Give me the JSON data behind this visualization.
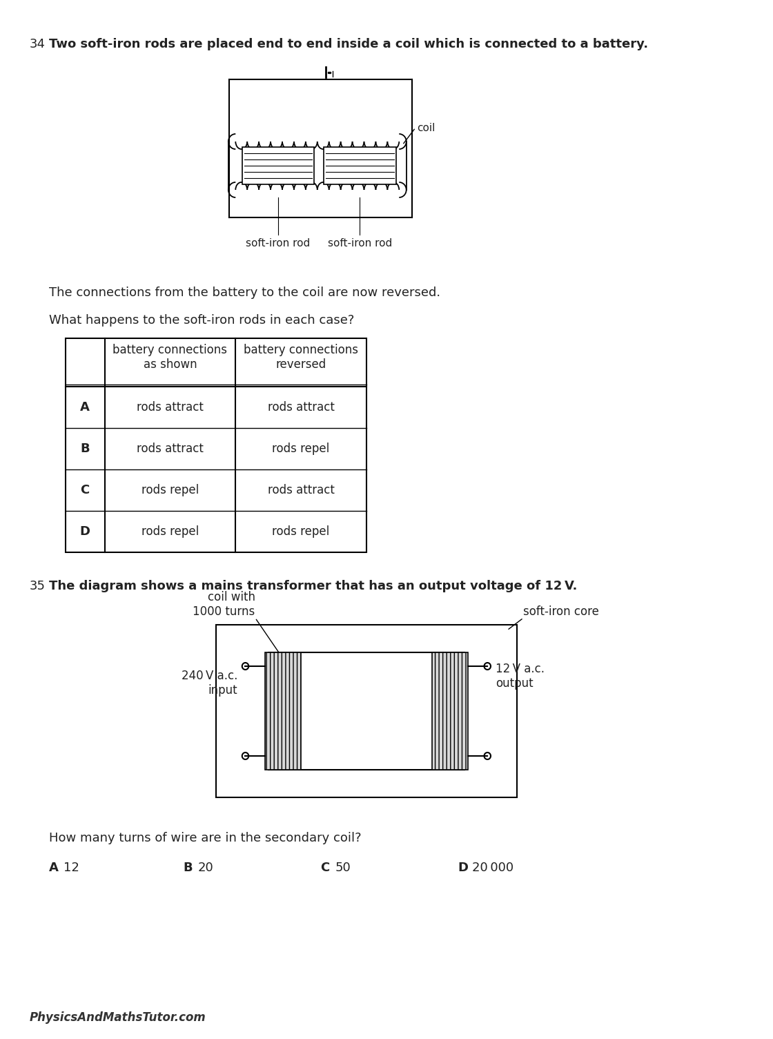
{
  "bg_color": "#ffffff",
  "q34_number": "34",
  "q34_text": "Two soft-iron rods are placed end to end inside a coil which is connected to a battery.",
  "q34_text2": "The connections from the battery to the coil are now reversed.",
  "q34_text3": "What happens to the soft-iron rods in each case?",
  "table_col1_header": "battery connections\nas shown",
  "table_col2_header": "battery connections\nreversed",
  "table_rows": [
    [
      "A",
      "rods attract",
      "rods attract"
    ],
    [
      "B",
      "rods attract",
      "rods repel"
    ],
    [
      "C",
      "rods repel",
      "rods attract"
    ],
    [
      "D",
      "rods repel",
      "rods repel"
    ]
  ],
  "q35_number": "35",
  "q35_text": "The diagram shows a mains transformer that has an output voltage of 12 V.",
  "coil_label": "coil with\n1000 turns",
  "soft_iron_core_label": "soft-iron core",
  "input_label": "240 V a.c.\ninput",
  "output_label": "12 V a.c.\noutput",
  "q35_question": "How many turns of wire are in the secondary coil?",
  "q35_options": [
    [
      "A",
      "12"
    ],
    [
      "B",
      "20"
    ],
    [
      "C",
      "50"
    ],
    [
      "D",
      "20 000"
    ]
  ],
  "coil_label_diagram1": "coil",
  "rod1_label": "soft-iron rod",
  "rod2_label": "soft-iron rod",
  "footer": "PhysicsAndMathsTutor.com"
}
